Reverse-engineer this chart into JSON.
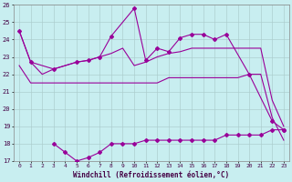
{
  "xlabel": "Windchill (Refroidissement éolien,°C)",
  "background_color": "#c8eef0",
  "grid_color": "#aacccc",
  "line_color": "#990099",
  "x_ticks": [
    0,
    1,
    2,
    3,
    4,
    5,
    6,
    7,
    8,
    9,
    10,
    11,
    12,
    13,
    14,
    15,
    16,
    17,
    18,
    19,
    20,
    21,
    22,
    23
  ],
  "ylim": [
    17,
    26
  ],
  "yticks": [
    17,
    18,
    19,
    20,
    21,
    22,
    23,
    24,
    25,
    26
  ],
  "series1_x": [
    0,
    1,
    2,
    3,
    4,
    5,
    6,
    7,
    8,
    9,
    10,
    11,
    12,
    13,
    14,
    15,
    16,
    17,
    18,
    19,
    20,
    21,
    22,
    23
  ],
  "series1_y": [
    24.5,
    22.7,
    22.0,
    22.3,
    22.5,
    22.7,
    22.8,
    23.0,
    23.2,
    23.5,
    22.5,
    22.7,
    23.0,
    23.2,
    23.3,
    23.5,
    23.5,
    23.5,
    23.5,
    23.5,
    23.5,
    23.5,
    20.5,
    19.0
  ],
  "series2_x": [
    0,
    1,
    2,
    3,
    4,
    5,
    6,
    7,
    8,
    9,
    10,
    11,
    12,
    13,
    14,
    15,
    16,
    17,
    18,
    19,
    20,
    21,
    22,
    23
  ],
  "series2_y": [
    22.5,
    21.5,
    21.5,
    21.5,
    21.5,
    21.5,
    21.5,
    21.5,
    21.5,
    21.5,
    21.5,
    21.5,
    21.5,
    21.8,
    21.8,
    21.8,
    21.8,
    21.8,
    21.8,
    21.8,
    22.0,
    22.0,
    19.5,
    18.2
  ],
  "series3_x": [
    0,
    1,
    3,
    5,
    6,
    7,
    8,
    10,
    11,
    12,
    13,
    14,
    15,
    16,
    17,
    18,
    20,
    22,
    23
  ],
  "series3_y": [
    24.5,
    22.7,
    22.3,
    22.7,
    22.8,
    23.0,
    24.2,
    25.8,
    22.8,
    23.5,
    23.3,
    24.1,
    24.3,
    24.3,
    24.0,
    24.3,
    22.0,
    19.3,
    18.8
  ],
  "series4_x": [
    3,
    4,
    5,
    6,
    7,
    8,
    9,
    10,
    11,
    12,
    13,
    14,
    15,
    16,
    17,
    18,
    19,
    20,
    21,
    22,
    23
  ],
  "series4_y": [
    18.0,
    17.5,
    17.0,
    17.2,
    17.5,
    18.0,
    18.0,
    18.0,
    18.2,
    18.2,
    18.2,
    18.2,
    18.2,
    18.2,
    18.2,
    18.5,
    18.5,
    18.5,
    18.5,
    18.8,
    18.8
  ]
}
